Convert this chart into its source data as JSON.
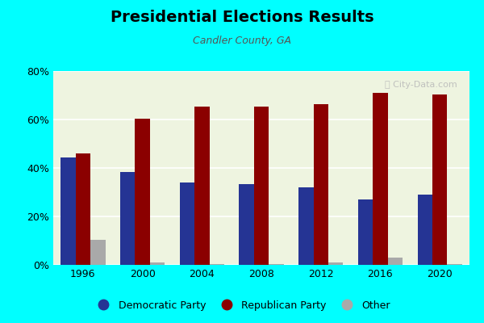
{
  "title": "Presidential Elections Results",
  "subtitle": "Candler County, GA",
  "years": [
    1996,
    2000,
    2004,
    2008,
    2012,
    2016,
    2020
  ],
  "democratic": [
    44.5,
    38.5,
    34.0,
    33.5,
    32.0,
    27.0,
    29.0
  ],
  "republican": [
    46.0,
    60.5,
    65.5,
    65.5,
    66.5,
    71.0,
    70.5
  ],
  "other": [
    10.5,
    1.0,
    0.5,
    0.5,
    1.0,
    3.0,
    0.5
  ],
  "dem_color": "#253494",
  "rep_color": "#8B0000",
  "other_color": "#A9A9A9",
  "bg_color": "#eef4e0",
  "outer_bg": "#00FFFF",
  "ylim": [
    0,
    80
  ],
  "yticks": [
    0,
    20,
    40,
    60,
    80
  ],
  "bar_width": 0.25,
  "watermark": "City-Data.com"
}
